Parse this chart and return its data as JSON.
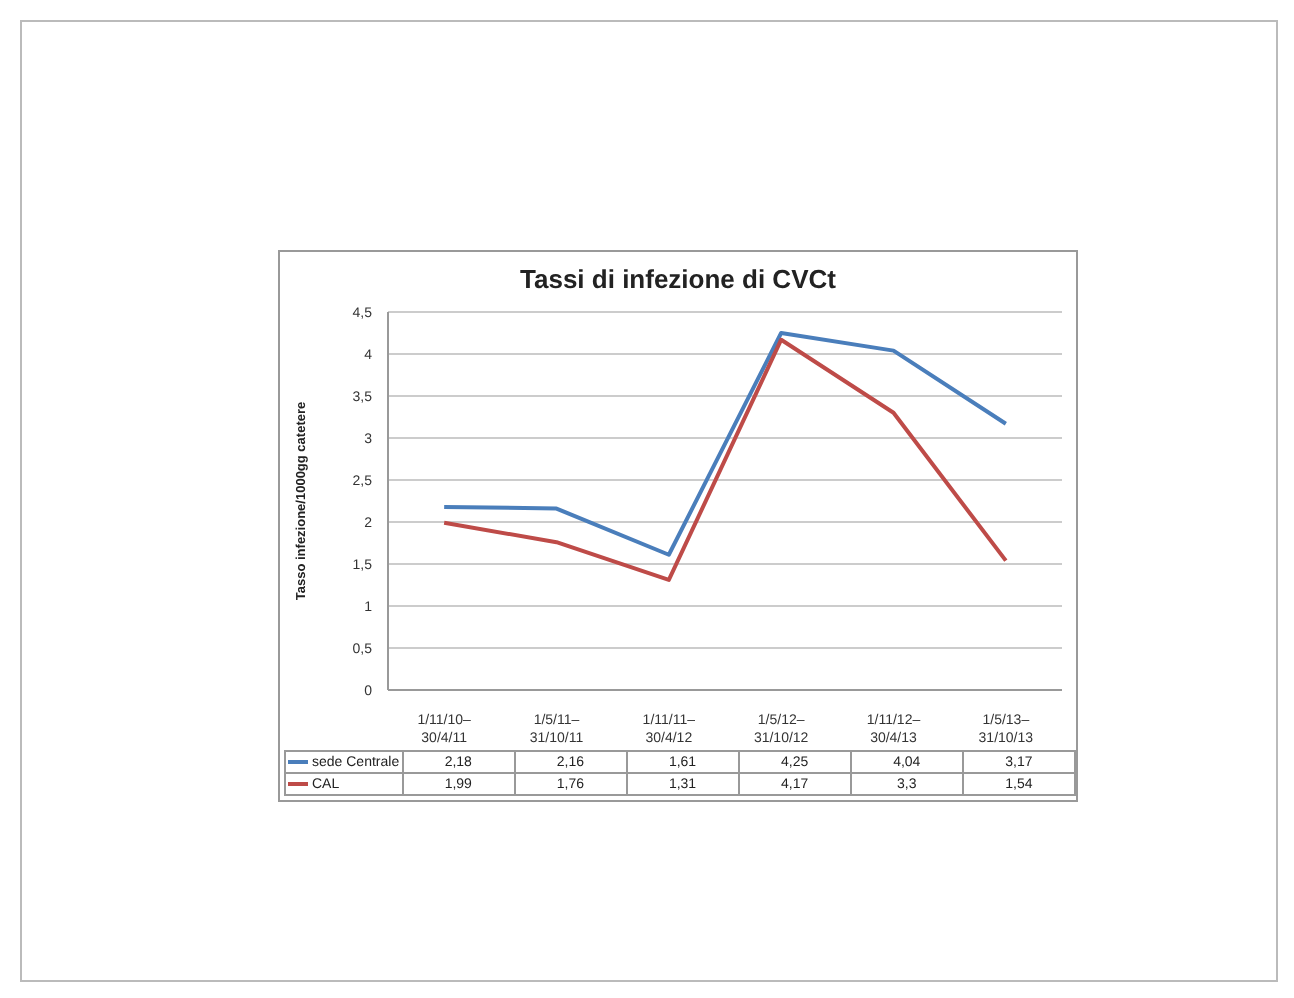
{
  "chart_data": {
    "type": "line",
    "title": "Tassi di infezione di CVCt",
    "ylabel": "Tasso infezione/1000gg catetere",
    "categories": [
      "1/11/10–30/4/11",
      "1/5/11–31/10/11",
      "1/11/11–30/4/12",
      "1/5/12–31/10/12",
      "1/11/12–30/4/13",
      "1/5/13–31/10/13"
    ],
    "series": [
      {
        "name": "sede Centrale",
        "color": "#4a7ebb",
        "values": [
          2.18,
          2.16,
          1.61,
          4.25,
          4.04,
          3.17
        ],
        "value_labels": [
          "2,18",
          "2,16",
          "1,61",
          "4,25",
          "4,04",
          "3,17"
        ]
      },
      {
        "name": "CAL",
        "color": "#be4b48",
        "values": [
          1.99,
          1.76,
          1.31,
          4.17,
          3.3,
          1.54
        ],
        "value_labels": [
          "1,99",
          "1,76",
          "1,31",
          "4,17",
          "3,3",
          "1,54"
        ]
      }
    ],
    "ylim": [
      0,
      4.5
    ],
    "yticks": [
      0,
      {
        "value": 0.5,
        "label": "0,5"
      },
      1,
      {
        "value": 1.5,
        "label": "1,5"
      },
      2,
      {
        "value": 2.5,
        "label": "2,5"
      },
      3,
      {
        "value": 3.5,
        "label": "3,5"
      },
      4,
      {
        "value": 4.5,
        "label": "4,5"
      }
    ],
    "grid": "y",
    "legend": "bottom",
    "marker": "none",
    "line_style": "solid"
  }
}
